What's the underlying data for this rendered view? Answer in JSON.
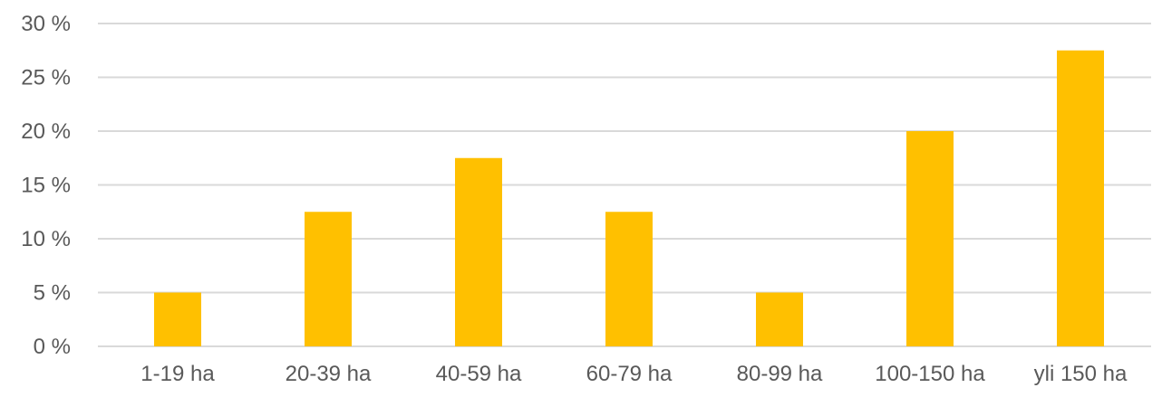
{
  "chart_data": {
    "type": "bar",
    "categories": [
      "1-19 ha",
      "20-39 ha",
      "40-59 ha",
      "60-79 ha",
      "80-99 ha",
      "100-150 ha",
      "yli 150 ha"
    ],
    "values": [
      5,
      12.5,
      17.5,
      12.5,
      5,
      20,
      27.5
    ],
    "unit": "%",
    "ylim": [
      0,
      30
    ],
    "yticks": [
      0,
      5,
      10,
      15,
      20,
      25,
      30
    ],
    "ytick_labels": [
      "0 %",
      "5 %",
      "10 %",
      "15 %",
      "20 %",
      "25 %",
      "30 %"
    ],
    "grid": true,
    "legend": "none",
    "colors": {
      "bar": "#ffc000",
      "grid": "#d9d9d9",
      "text": "#595959"
    }
  }
}
